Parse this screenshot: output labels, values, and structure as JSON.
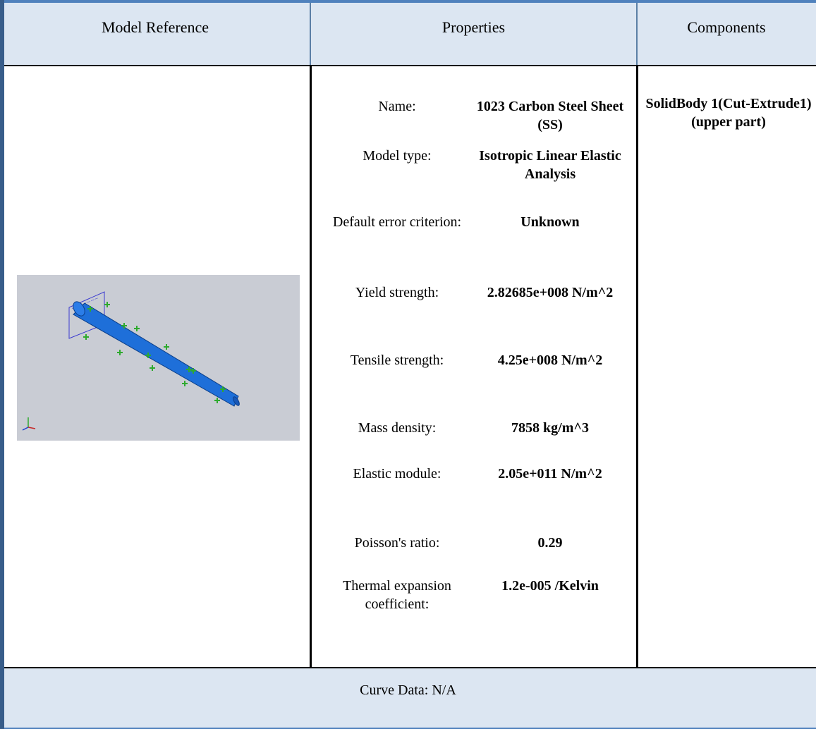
{
  "header": {
    "model_reference": "Model Reference",
    "properties": "Properties",
    "components": "Components"
  },
  "properties": [
    {
      "label": "Name:",
      "value": "1023 Carbon Steel Sheet (SS)"
    },
    {
      "label": "Model type:",
      "value": "Isotropic Linear Elastic Analysis"
    },
    {
      "label": "Default error criterion:",
      "value": "Unknown"
    },
    {
      "label": "Yield strength:",
      "value": "2.82685e+008 N/m^2"
    },
    {
      "label": "Tensile strength:",
      "value": "4.25e+008 N/m^2"
    },
    {
      "label": "Mass density:",
      "value": "7858 kg/m^3"
    },
    {
      "label": "Elastic module:",
      "value": "2.05e+011 N/m^2"
    },
    {
      "label": "Poisson's ratio:",
      "value": "0.29"
    },
    {
      "label": "Thermal expansion coefficient:",
      "value": "1.2e-005 /Kelvin"
    }
  ],
  "components": {
    "value": "SolidBody 1(Cut-Extrude1)(upper part)"
  },
  "footer": {
    "curve_data": "Curve Data: N/A"
  },
  "model_image": {
    "icon": "tapered-tube-model-icon",
    "background_color": "#c9ccd4",
    "body_color": "#1e6fd9",
    "fixture_color": "#2eaa2e"
  }
}
